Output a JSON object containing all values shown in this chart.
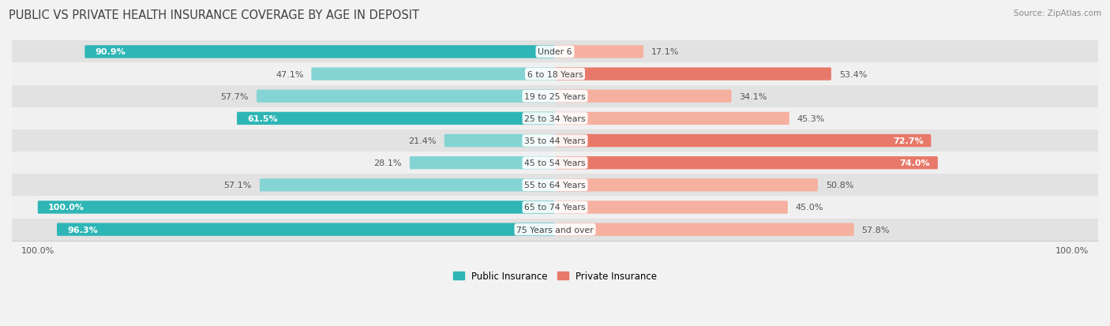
{
  "title": "PUBLIC VS PRIVATE HEALTH INSURANCE COVERAGE BY AGE IN DEPOSIT",
  "source": "Source: ZipAtlas.com",
  "categories": [
    "Under 6",
    "6 to 18 Years",
    "19 to 25 Years",
    "25 to 34 Years",
    "35 to 44 Years",
    "45 to 54 Years",
    "55 to 64 Years",
    "65 to 74 Years",
    "75 Years and over"
  ],
  "public_values": [
    90.9,
    47.1,
    57.7,
    61.5,
    21.4,
    28.1,
    57.1,
    100.0,
    96.3
  ],
  "private_values": [
    17.1,
    53.4,
    34.1,
    45.3,
    72.7,
    74.0,
    50.8,
    45.0,
    57.8
  ],
  "public_colors": [
    "#2eb5b5",
    "#85d4d4",
    "#85d4d4",
    "#2eb5b5",
    "#85d4d4",
    "#85d4d4",
    "#85d4d4",
    "#2eb5b5",
    "#2eb5b5"
  ],
  "private_colors": [
    "#f5b0a0",
    "#e8796a",
    "#f5b0a0",
    "#f5b0a0",
    "#e8796a",
    "#e8796a",
    "#f5b0a0",
    "#f5b0a0",
    "#f5b0a0"
  ],
  "row_bg_colors": [
    "#e2e2e2",
    "#f0f0f0",
    "#e2e2e2",
    "#f0f0f0",
    "#e2e2e2",
    "#f0f0f0",
    "#e2e2e2",
    "#f0f0f0",
    "#e2e2e2"
  ],
  "bar_height": 0.58,
  "max_value": 100.0,
  "legend_public": "Public Insurance",
  "legend_private": "Private Insurance",
  "title_fontsize": 10.5,
  "label_fontsize": 8,
  "category_fontsize": 7.8,
  "source_fontsize": 7.5,
  "pub_label_inside": [
    true,
    false,
    false,
    true,
    false,
    false,
    false,
    true,
    true
  ],
  "priv_label_inside": [
    false,
    false,
    false,
    false,
    true,
    true,
    false,
    false,
    false
  ],
  "pub_label_white": [
    true,
    false,
    false,
    true,
    false,
    false,
    false,
    true,
    true
  ],
  "priv_label_white": [
    false,
    false,
    false,
    false,
    true,
    true,
    false,
    false,
    false
  ]
}
